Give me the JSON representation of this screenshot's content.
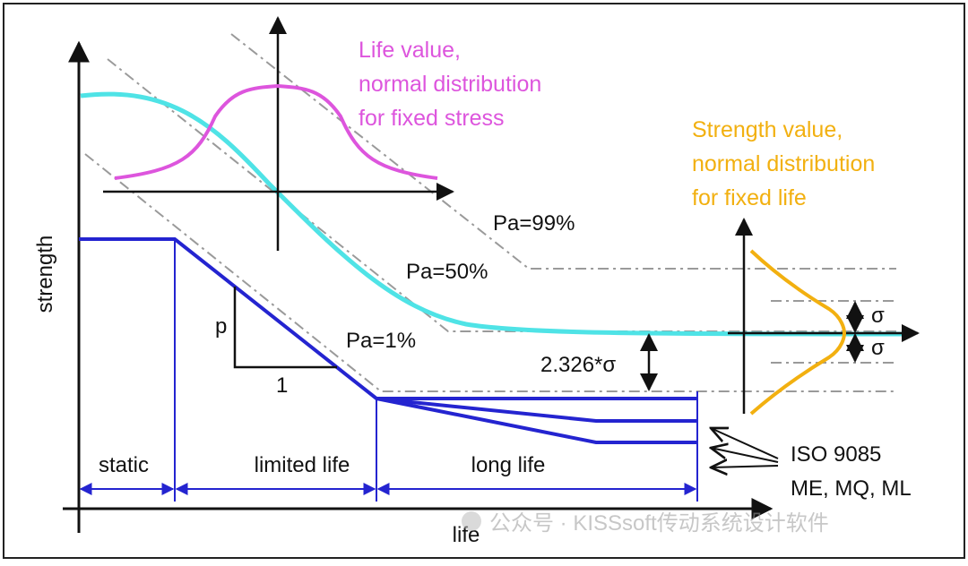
{
  "colors": {
    "pink": "#dd55dd",
    "cyan": "#4fe3e6",
    "blue": "#2424d0",
    "orange": "#f2b010",
    "gray_dash": "#999999",
    "black": "#111111"
  },
  "axes": {
    "y_label": "strength",
    "x_label": "life"
  },
  "annotations": {
    "life_value_line1": "Life value,",
    "life_value_line2": "normal distribution",
    "life_value_line3": "for fixed stress",
    "strength_value_line1": "Strength value,",
    "strength_value_line2": "normal distribution",
    "strength_value_line3": "for fixed life",
    "pa99": "Pa=99%",
    "pa50": "Pa=50%",
    "pa1": "Pa=1%",
    "slope_p": "p",
    "slope_1": "1",
    "offset": "2.326*σ",
    "sigma_upper": "σ",
    "sigma_lower": "σ",
    "iso_line1": "ISO 9085",
    "iso_line2": "ME, MQ, ML"
  },
  "regions": {
    "static": "static",
    "limited_life": "limited life",
    "long_life": "long life"
  },
  "watermark": {
    "text": "公众号 · KISSsoft传动系统设计软件"
  }
}
